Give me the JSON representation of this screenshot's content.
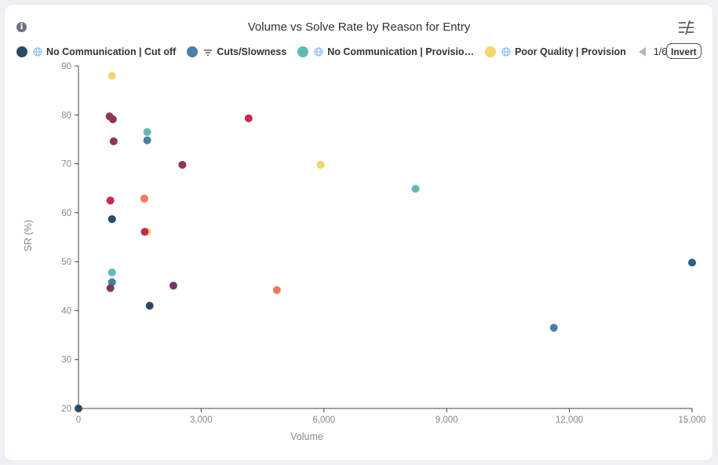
{
  "header": {
    "title": "Volume vs Solve Rate by Reason for Entry",
    "invert_label": "Invert",
    "pager_text": "1/6"
  },
  "legend": [
    {
      "label": "No Communication | Cut off",
      "color": "#2e4a62",
      "icon": "globe-icon"
    },
    {
      "label": "Cuts/Slowness",
      "color": "#4a7fa8",
      "icon": "wifi-icon"
    },
    {
      "label": "No Communication | Provisio…",
      "color": "#5dbcb0",
      "icon": "globe-icon"
    },
    {
      "label": "Poor Quality | Provision",
      "color": "#f5d56e",
      "icon": "globe-icon"
    }
  ],
  "chart_data": {
    "type": "scatter",
    "title": "Volume vs Solve Rate by Reason for Entry",
    "xlabel": "Volume",
    "ylabel": "SR (%)",
    "xlim": [
      0,
      15000
    ],
    "ylim": [
      20,
      90
    ],
    "x_ticks": [
      0,
      3000,
      6000,
      9000,
      12000,
      15000
    ],
    "x_tick_labels": [
      "0",
      "3,000",
      "6,000",
      "9,000",
      "12,000",
      "15,000"
    ],
    "y_ticks": [
      20,
      30,
      40,
      50,
      60,
      70,
      80,
      90
    ],
    "y_tick_labels": [
      "20",
      "30",
      "40",
      "50",
      "60",
      "70",
      "80",
      "90"
    ],
    "legend_position": "top",
    "points": [
      {
        "x": 0,
        "y": 20.0,
        "color": "#2e4a62"
      },
      {
        "x": 820,
        "y": 58.7,
        "color": "#2e4a62"
      },
      {
        "x": 1740,
        "y": 41.0,
        "color": "#2e4a62"
      },
      {
        "x": 1680,
        "y": 74.8,
        "color": "#4a7fa8"
      },
      {
        "x": 820,
        "y": 45.8,
        "color": "#4a7fa8"
      },
      {
        "x": 11620,
        "y": 36.5,
        "color": "#4a7fa8"
      },
      {
        "x": 15000,
        "y": 49.8,
        "color": "#2e5f87"
      },
      {
        "x": 1680,
        "y": 76.5,
        "color": "#5dbcb0"
      },
      {
        "x": 820,
        "y": 47.8,
        "color": "#5dbcb0"
      },
      {
        "x": 8240,
        "y": 64.9,
        "color": "#5dbcb0"
      },
      {
        "x": 820,
        "y": 88.0,
        "color": "#f5d56e"
      },
      {
        "x": 5920,
        "y": 69.8,
        "color": "#f5d56e"
      },
      {
        "x": 1680,
        "y": 56.1,
        "color": "#f5d56e"
      },
      {
        "x": 1610,
        "y": 62.9,
        "color": "#ef7a5d"
      },
      {
        "x": 4850,
        "y": 44.2,
        "color": "#ef7a5d"
      },
      {
        "x": 760,
        "y": 79.7,
        "color": "#8e3558"
      },
      {
        "x": 840,
        "y": 79.1,
        "color": "#8e3558"
      },
      {
        "x": 860,
        "y": 74.6,
        "color": "#8e3558"
      },
      {
        "x": 2540,
        "y": 69.8,
        "color": "#8e3558"
      },
      {
        "x": 780,
        "y": 62.5,
        "color": "#c7284f"
      },
      {
        "x": 4160,
        "y": 79.3,
        "color": "#c7284f"
      },
      {
        "x": 1620,
        "y": 56.1,
        "color": "#c7284f"
      },
      {
        "x": 780,
        "y": 44.6,
        "color": "#7b3a64"
      },
      {
        "x": 2320,
        "y": 45.1,
        "color": "#6f3a63"
      }
    ]
  }
}
